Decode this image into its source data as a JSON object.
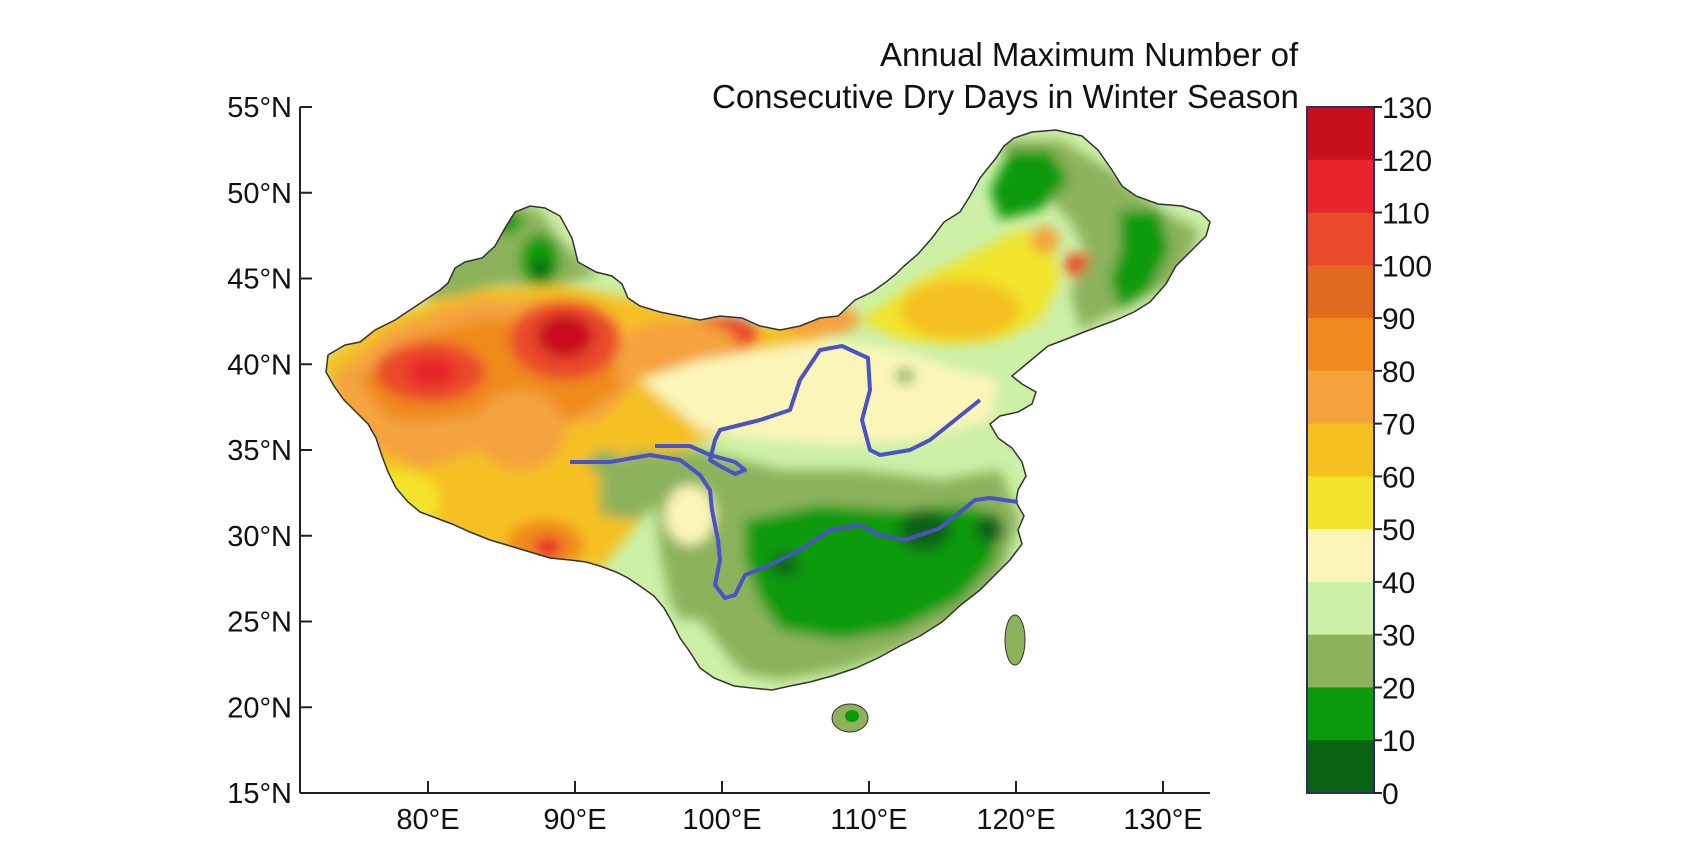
{
  "title": {
    "line1": "Annual Maximum Number of",
    "line2": "Consecutive Dry Days in Winter Season"
  },
  "map": {
    "region": "China",
    "lat_ticks": [
      "55°N",
      "50°N",
      "45°N",
      "40°N",
      "35°N",
      "30°N",
      "25°N",
      "20°N",
      "15°N"
    ],
    "lon_ticks": [
      "80°E",
      "90°E",
      "100°E",
      "110°E",
      "120°E",
      "130°E"
    ],
    "river_color": "#4a52c8"
  },
  "colorbar": {
    "ticks": [
      "130",
      "120",
      "110",
      "100",
      "90",
      "80",
      "70",
      "60",
      "50",
      "40",
      "30",
      "20",
      "10",
      "0"
    ],
    "bins": [
      {
        "range": "120-130",
        "color": "#c8101a"
      },
      {
        "range": "110-120",
        "color": "#e8252c"
      },
      {
        "range": "100-110",
        "color": "#ea4a2c"
      },
      {
        "range": "90-100",
        "color": "#e26a1f"
      },
      {
        "range": "80-90",
        "color": "#f08a1e"
      },
      {
        "range": "70-80",
        "color": "#f4a33c"
      },
      {
        "range": "60-70",
        "color": "#f5c020"
      },
      {
        "range": "50-60",
        "color": "#f2e42a"
      },
      {
        "range": "40-50",
        "color": "#fbf6b8"
      },
      {
        "range": "30-40",
        "color": "#ccf0a6"
      },
      {
        "range": "20-30",
        "color": "#8cb25c"
      },
      {
        "range": "10-20",
        "color": "#0a9a0a"
      },
      {
        "range": "0-10",
        "color": "#0a6214"
      }
    ]
  }
}
